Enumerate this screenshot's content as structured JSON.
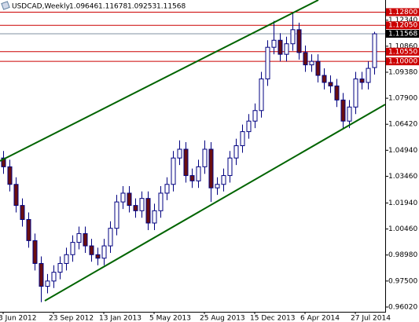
{
  "header": {
    "symbol": "USDCAD,Weekly",
    "values": [
      1.09646,
      1.11678,
      1.09253,
      1.11568
    ],
    "value_labels": [
      "1.09646",
      "1.11678",
      "1.09253",
      "1.11568"
    ]
  },
  "chart_data": {
    "type": "candlestick",
    "up_color": "#000080",
    "down_color": "#6b0f0f",
    "wick_color": "#000080",
    "ylim": [
      0.9575,
      1.1349
    ],
    "yticks": [
      {
        "value": 1.1234,
        "label": "1.12340"
      },
      {
        "value": 1.1086,
        "label": "1.10860"
      },
      {
        "value": 1.0938,
        "label": "1.09380"
      },
      {
        "value": 1.079,
        "label": "1.07900"
      },
      {
        "value": 1.0642,
        "label": "1.06420"
      },
      {
        "value": 1.0494,
        "label": "1.04940"
      },
      {
        "value": 1.0346,
        "label": "1.03460"
      },
      {
        "value": 1.0194,
        "label": "1.01940"
      },
      {
        "value": 1.0046,
        "label": "1.00460"
      },
      {
        "value": 0.9898,
        "label": "0.98980"
      },
      {
        "value": 0.975,
        "label": "0.97500"
      },
      {
        "value": 0.9602,
        "label": "0.96020"
      }
    ],
    "xticks": [
      {
        "value": 0,
        "label": "3 Jun 2012"
      },
      {
        "value": 8,
        "label": "23 Sep 2012"
      },
      {
        "value": 16,
        "label": "13 Jan 2013"
      },
      {
        "value": 24,
        "label": "5 May 2013"
      },
      {
        "value": 32,
        "label": "25 Aug 2013"
      },
      {
        "value": 40,
        "label": "15 Dec 2013"
      },
      {
        "value": 48,
        "label": "6 Apr 2014"
      },
      {
        "value": 56,
        "label": "27 Jul 2014"
      }
    ],
    "levels": [
      {
        "value": 1.128,
        "label": "1.12800",
        "color": "#cc0000"
      },
      {
        "value": 1.1205,
        "label": "1.12050",
        "color": "#cc0000"
      },
      {
        "value": 1.1055,
        "label": "1.10550",
        "color": "#cc0000"
      },
      {
        "value": 1.1,
        "label": "1.10000",
        "color": "#cc0000"
      },
      {
        "value": 1.11568,
        "label": "1.11568",
        "color": "#000000"
      }
    ],
    "open": [
      1.045,
      1.04,
      1.03,
      1.018,
      1.01,
      0.998,
      0.985,
      0.972,
      0.975,
      0.98,
      0.985,
      0.99,
      0.997,
      1.002,
      0.995,
      0.99,
      0.988,
      0.995,
      1.005,
      1.02,
      1.025,
      1.018,
      1.015,
      1.022,
      1.008,
      1.015,
      1.025,
      1.03,
      1.045,
      1.05,
      1.035,
      1.032,
      1.04,
      1.05,
      1.028,
      1.03,
      1.035,
      1.045,
      1.052,
      1.06,
      1.066,
      1.072,
      1.09,
      1.108,
      1.112,
      1.104,
      1.11,
      1.118,
      1.105,
      1.098,
      1.1,
      1.092,
      1.088,
      1.086,
      1.078,
      1.066,
      1.074,
      1.09,
      1.088,
      1.09646
    ],
    "high": [
      1.049,
      1.044,
      1.034,
      1.022,
      1.014,
      1.002,
      0.989,
      0.979,
      0.984,
      0.989,
      0.994,
      1.001,
      1.006,
      1.006,
      0.999,
      0.994,
      0.999,
      1.009,
      1.024,
      1.029,
      1.029,
      1.022,
      1.026,
      1.026,
      1.019,
      1.029,
      1.034,
      1.049,
      1.055,
      1.054,
      1.039,
      1.044,
      1.055,
      1.054,
      1.034,
      1.039,
      1.049,
      1.056,
      1.064,
      1.07,
      1.076,
      1.094,
      1.112,
      1.123,
      1.116,
      1.114,
      1.128,
      1.122,
      1.109,
      1.104,
      1.104,
      1.096,
      1.092,
      1.09,
      1.082,
      1.078,
      1.094,
      1.094,
      1.1,
      1.11678
    ],
    "low": [
      1.036,
      1.026,
      1.014,
      1.006,
      0.994,
      0.981,
      0.963,
      0.968,
      0.971,
      0.976,
      0.981,
      0.986,
      0.993,
      0.991,
      0.986,
      0.984,
      0.984,
      0.991,
      1.001,
      1.016,
      1.014,
      1.011,
      1.011,
      1.004,
      1.004,
      1.011,
      1.021,
      1.026,
      1.041,
      1.031,
      1.028,
      1.028,
      1.036,
      1.02,
      1.024,
      1.026,
      1.031,
      1.041,
      1.048,
      1.056,
      1.062,
      1.068,
      1.086,
      1.104,
      1.1,
      1.1,
      1.106,
      1.101,
      1.094,
      1.094,
      1.088,
      1.084,
      1.082,
      1.074,
      1.062,
      1.062,
      1.07,
      1.084,
      1.084,
      1.09253
    ],
    "close": [
      1.04,
      1.03,
      1.018,
      1.01,
      0.998,
      0.985,
      0.972,
      0.975,
      0.98,
      0.985,
      0.99,
      0.997,
      1.002,
      0.995,
      0.99,
      0.988,
      0.995,
      1.005,
      1.02,
      1.025,
      1.018,
      1.015,
      1.022,
      1.008,
      1.015,
      1.025,
      1.03,
      1.045,
      1.05,
      1.035,
      1.032,
      1.04,
      1.05,
      1.028,
      1.03,
      1.035,
      1.045,
      1.052,
      1.06,
      1.066,
      1.072,
      1.09,
      1.108,
      1.112,
      1.104,
      1.11,
      1.118,
      1.105,
      1.098,
      1.1,
      1.092,
      1.088,
      1.086,
      1.078,
      1.066,
      1.074,
      1.09,
      1.088,
      1.096,
      1.11568
    ]
  }
}
